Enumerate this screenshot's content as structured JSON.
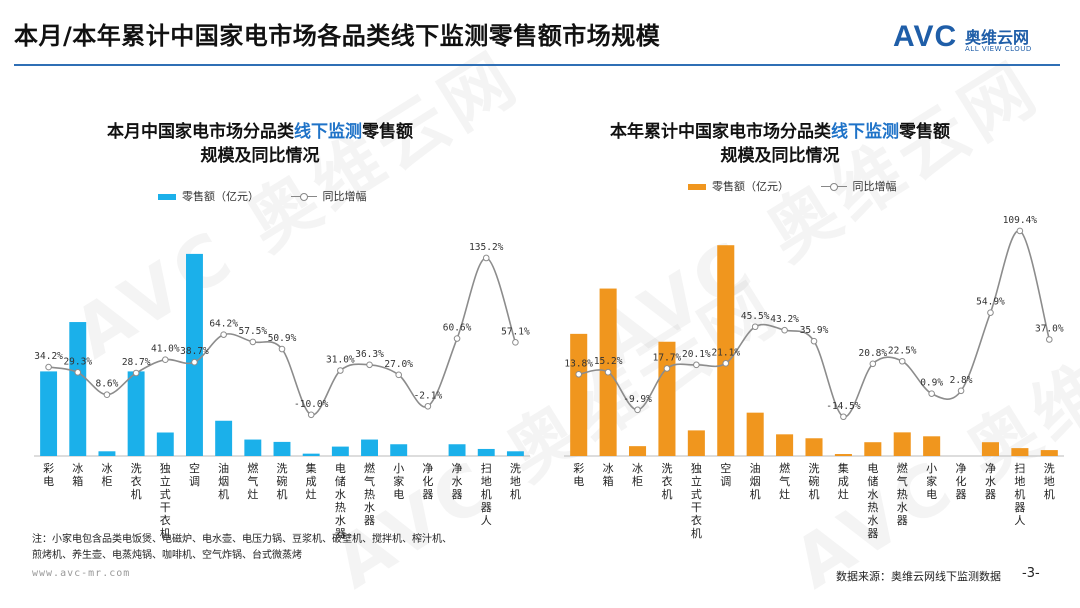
{
  "header": {
    "title": "本月/本年累计中国家电市场各品类线下监测零售额市场规模",
    "logo_mark": "AVC",
    "logo_cn": "奥维云网",
    "logo_en": "ALL VIEW CLOUD"
  },
  "charts": [
    {
      "title_pre": "本月中国家电市场分品类",
      "title_hl": "线下监测",
      "title_post": "零售额",
      "title_line2": "规模及同比情况",
      "legend_bar": "零售额（亿元）",
      "legend_line": "同比增幅"
    },
    {
      "title_pre": "本年累计中国家电市场分品类",
      "title_hl": "线下监测",
      "title_post": "零售额",
      "title_line2": "规模及同比情况",
      "legend_bar": "零售额（亿元）",
      "legend_line": "同比增幅"
    }
  ],
  "chart_data": [
    {
      "type": "bar",
      "title": "本月中国家电市场分品类线下监测零售额规模及同比情况",
      "categories": [
        "彩电",
        "冰箱",
        "冰柜",
        "洗衣机",
        "独立式干衣机",
        "空调",
        "油烟机",
        "燃气灶",
        "洗碗机",
        "集成灶",
        "电储水热水器",
        "燃气热水器",
        "小家电",
        "净化器",
        "净水器",
        "扫地机器人",
        "洗地机"
      ],
      "series": [
        {
          "name": "零售额（亿元）",
          "kind": "bar",
          "color": "#1bb0ea",
          "values": [
            36,
            57,
            2,
            36,
            10,
            86,
            15,
            7,
            6,
            1,
            4,
            7,
            5,
            0,
            5,
            3,
            2
          ]
        },
        {
          "name": "同比增幅",
          "kind": "line",
          "color": "#8c8c8c",
          "labels": [
            "34.2%",
            "29.3%",
            "8.6%",
            "28.7%",
            "41.0%",
            "38.7%",
            "64.2%",
            "57.5%",
            "50.9%",
            "-10.0%",
            "31.0%",
            "36.3%",
            "27.0%",
            "-2.1%",
            "60.6%",
            "135.2%",
            "57.1%"
          ],
          "values": [
            34.2,
            29.3,
            8.6,
            28.7,
            41.0,
            38.7,
            64.2,
            57.5,
            50.9,
            -10.0,
            31.0,
            36.3,
            27.0,
            -2.1,
            60.6,
            135.2,
            57.1
          ]
        }
      ]
    },
    {
      "type": "bar",
      "title": "本年累计中国家电市场分品类线下监测零售额规模及同比情况",
      "categories": [
        "彩电",
        "冰箱",
        "冰柜",
        "洗衣机",
        "独立式干衣机",
        "空调",
        "油烟机",
        "燃气灶",
        "洗碗机",
        "集成灶",
        "电储水热水器",
        "燃气热水器",
        "小家电",
        "净化器",
        "净水器",
        "扫地机器人",
        "洗地机"
      ],
      "series": [
        {
          "name": "零售额（亿元）",
          "kind": "bar",
          "color": "#f0961e",
          "values": [
            62,
            85,
            5,
            58,
            13,
            107,
            22,
            11,
            9,
            1,
            7,
            12,
            10,
            0,
            7,
            4,
            3
          ]
        },
        {
          "name": "同比增幅",
          "kind": "line",
          "color": "#8c8c8c",
          "labels": [
            "13.8%",
            "15.2%",
            "-9.9%",
            "17.7%",
            "20.1%",
            "21.1%",
            "45.5%",
            "43.2%",
            "35.9%",
            "-14.5%",
            "20.8%",
            "22.5%",
            "0.9%",
            "2.8%",
            "54.9%",
            "109.4%",
            "37.0%"
          ],
          "values": [
            13.8,
            15.2,
            -9.9,
            17.7,
            20.1,
            21.1,
            45.5,
            43.2,
            35.9,
            -14.5,
            20.8,
            22.5,
            0.9,
            2.8,
            54.9,
            109.4,
            37.0
          ]
        }
      ]
    }
  ],
  "footer": {
    "note_line1": "注：小家电包含品类电饭煲、电磁炉、电水壶、电压力锅、豆浆机、破壁机、搅拌机、榨汁机、",
    "note_line2": "煎烤机、养生壶、电蒸炖锅、咖啡机、空气炸锅、台式微蒸烤",
    "site": "www.avc-mr.com",
    "source": "数据来源：奥维云网线下监测数据",
    "page": "-3-"
  }
}
